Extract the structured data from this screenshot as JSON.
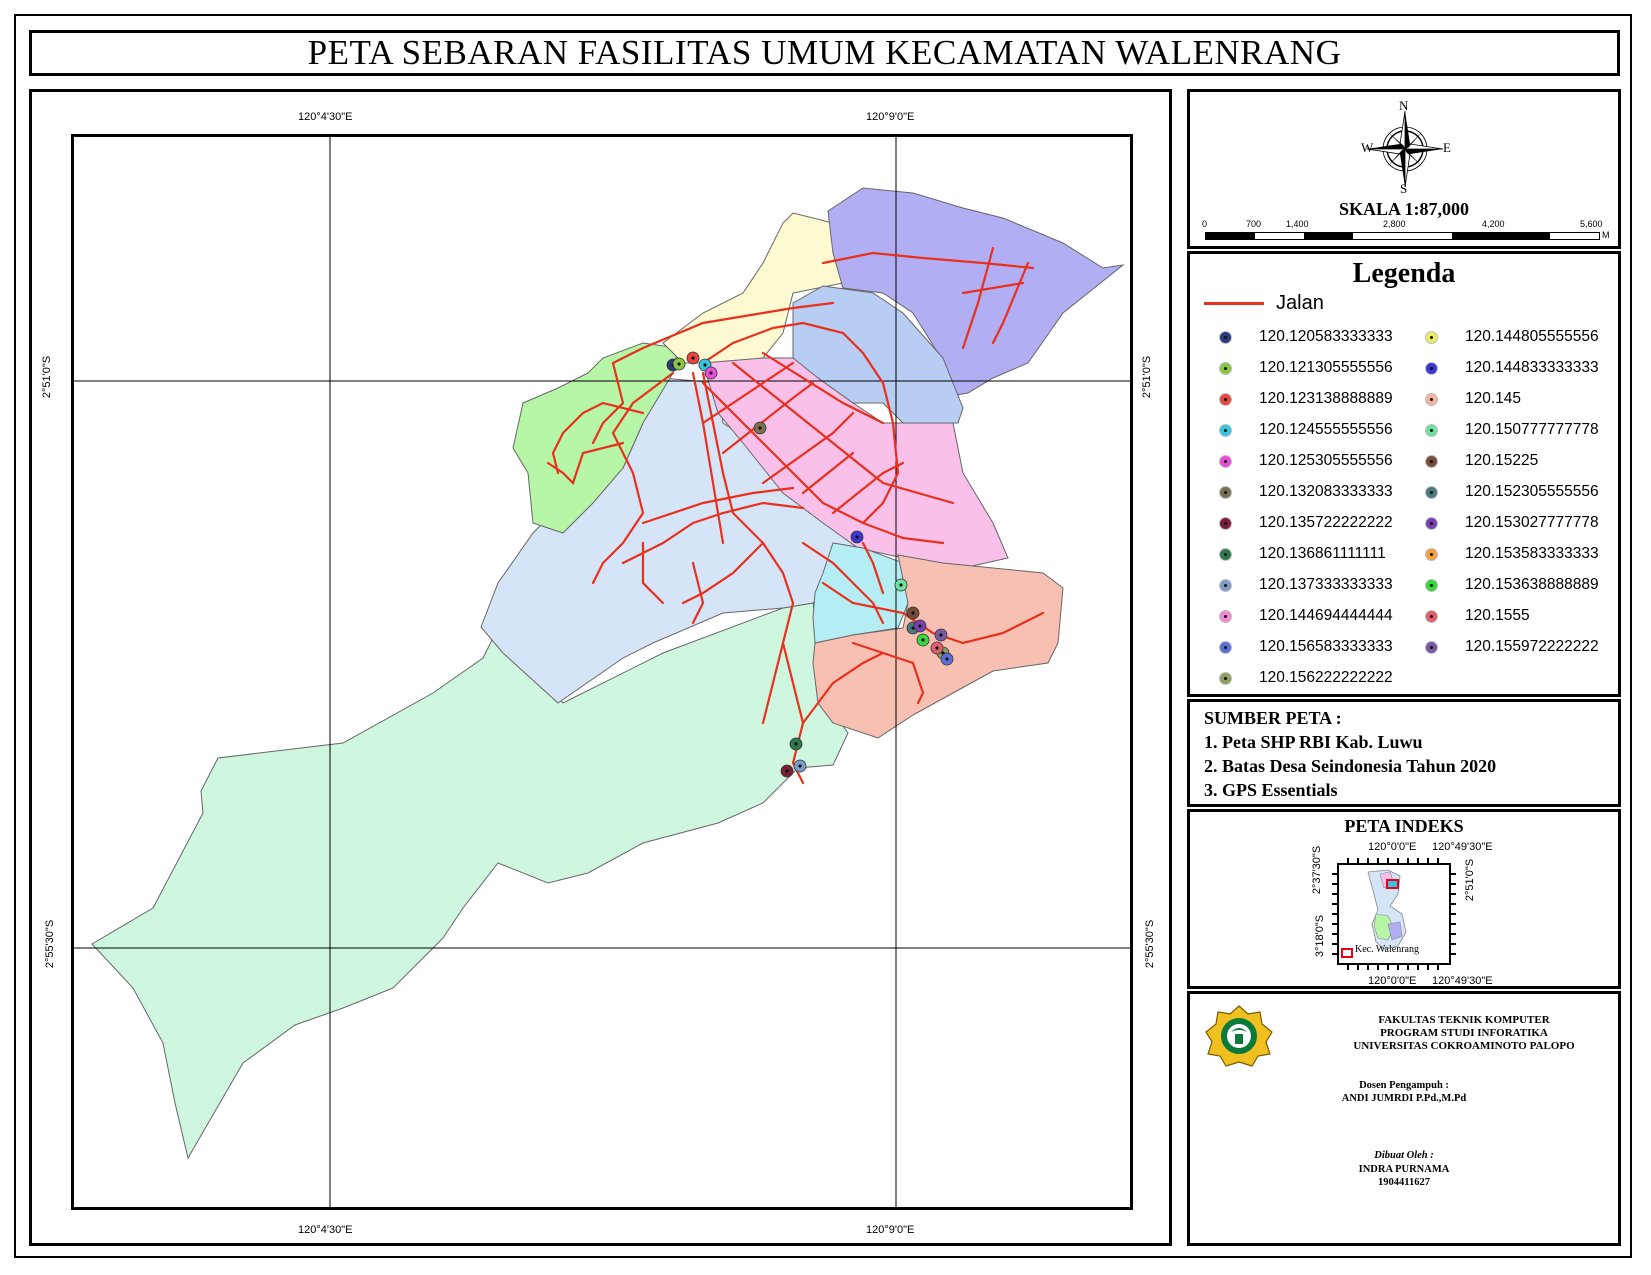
{
  "title": "PETA SEBARAN FASILITAS UMUM KECAMATAN WALENRANG",
  "map_coords": {
    "lon1": "120°4'30\"E",
    "lon2": "120°9'0\"E",
    "lat1": "2°51'0\"S",
    "lat2": "2°55'30\"S"
  },
  "north_arrow": {
    "n": "N",
    "s": "S",
    "e": "E",
    "w": "W"
  },
  "scale": {
    "label": "SKALA 1:87,000",
    "ticks": [
      "0",
      "700",
      "1,400",
      "2,800",
      "4,200",
      "5,600"
    ],
    "unit": "M"
  },
  "legend": {
    "title": "Legenda",
    "road_label": "Jalan",
    "road_color": "#e8301c",
    "points_left": [
      {
        "label": "120.120583333333",
        "color": "#2a3a7a"
      },
      {
        "label": "120.121305555556",
        "color": "#8cc63f"
      },
      {
        "label": "120.123138888889",
        "color": "#e6443c"
      },
      {
        "label": "120.124555555556",
        "color": "#36c5e0"
      },
      {
        "label": "120.125305555556",
        "color": "#e64ed8"
      },
      {
        "label": "120.132083333333",
        "color": "#7a7050"
      },
      {
        "label": "120.135722222222",
        "color": "#7a1e3a"
      },
      {
        "label": "120.136861111111",
        "color": "#2e7a4e"
      },
      {
        "label": "120.137333333333",
        "color": "#7f9cc8"
      },
      {
        "label": "120.144694444444",
        "color": "#f08ad0"
      },
      {
        "label": "120.156583333333",
        "color": "#5a6ed8"
      },
      {
        "label": "120.156222222222",
        "color": "#8aa060"
      }
    ],
    "points_right": [
      {
        "label": "120.144805555556",
        "color": "#ecec60"
      },
      {
        "label": "120.144833333333",
        "color": "#3a38d0"
      },
      {
        "label": "120.145",
        "color": "#f2b49c"
      },
      {
        "label": "120.150777777778",
        "color": "#6ee0a0"
      },
      {
        "label": "120.15225",
        "color": "#7a4a3a"
      },
      {
        "label": "120.152305555556",
        "color": "#4a7a80"
      },
      {
        "label": "120.153027777778",
        "color": "#7a40b0"
      },
      {
        "label": "120.153583333333",
        "color": "#f0a040"
      },
      {
        "label": "120.153638888889",
        "color": "#36d840"
      },
      {
        "label": "120.1555",
        "color": "#e0606a"
      },
      {
        "label": "120.155972222222",
        "color": "#7a5aa0"
      }
    ]
  },
  "source": {
    "title": "SUMBER PETA :",
    "items": [
      "1. Peta SHP RBI Kab. Luwu",
      "2. Batas Desa Seindonesia Tahun 2020",
      "3. GPS Essentials"
    ]
  },
  "index_map": {
    "title": "PETA INDEKS",
    "top_left": "120°0'0\"E",
    "top_right": "120°49'30\"E",
    "bottom_left": "120°0'0\"E",
    "bottom_right": "120°49'30\"E",
    "left_top": "2°37'30\"S",
    "left_bottom": "3°18'0\"S",
    "right": "2°51'0\"S",
    "caption": "Kec. Walenrang"
  },
  "credit": {
    "line1": "FAKULTAS TEKNIK KOMPUTER",
    "line2": "PROGRAM STUDI INFORATIKA",
    "line3": "UNIVERSITAS COKROAMINOTO PALOPO",
    "lecturer_label": "Dosen Pengampuh :",
    "lecturer_name": "ANDI JUMRDI P.Pd.,M.Pd",
    "author_label": "Dibuat Oleh :",
    "author_name": "INDRA PURNAMA",
    "author_id": "1904411627"
  },
  "region_colors": {
    "yellow": "#fdfad2",
    "purple": "#b2aef4",
    "blue": "#b8cdf4",
    "green": "#b7f5a7",
    "lightblue": "#d6e4f8",
    "pink": "#f9c0ea",
    "cyan": "#b4eef4",
    "salmon": "#f8c0b2",
    "mint": "#cff7e0"
  }
}
